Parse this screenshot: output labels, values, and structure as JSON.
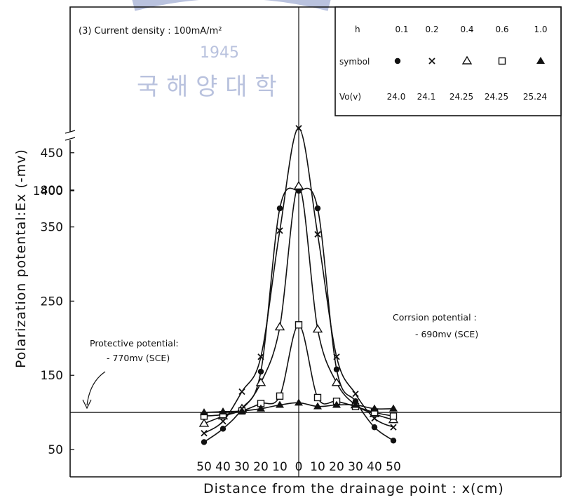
{
  "chart_data": {
    "type": "line",
    "title": "(3) Current density : 100mA/m²",
    "xlabel": "Distance from the drainage point : x(cm)",
    "ylabel": "Polarization potental:Ex (-mv)",
    "x": [
      -50,
      -40,
      -30,
      -20,
      -10,
      0,
      10,
      20,
      30,
      40,
      50
    ],
    "x_tick_labels": [
      "50",
      "40",
      "30",
      "20",
      "10",
      "0",
      "10",
      "20",
      "30",
      "40",
      "50"
    ],
    "y_tick_labels": [
      "50",
      "150",
      "250",
      "350",
      "450",
      "800",
      "1400"
    ],
    "xlim": [
      -60,
      70
    ],
    "ylim": [
      50,
      1550
    ],
    "y_scale": "broken axis (50–450 linear, break, 800, 1400)",
    "grid": false,
    "legend_placement": "top-right",
    "legend": {
      "header_h": "h",
      "header_symbol": "symbol",
      "header_vo": "Vo(v)",
      "h_values": [
        "0.1",
        "0.2",
        "0.4",
        "0.6",
        "1.0"
      ],
      "vo_values": [
        "24.0",
        "24.1",
        "24.25",
        "24.25",
        "25.24"
      ]
    },
    "series": [
      {
        "name": "0.1",
        "marker": "filled-circle",
        "values": [
          60,
          78,
          105,
          155,
          375,
          1400,
          375,
          158,
          115,
          80,
          62
        ]
      },
      {
        "name": "0.2",
        "marker": "cross",
        "values": [
          72,
          88,
          128,
          175,
          345,
          900,
          340,
          175,
          125,
          92,
          80
        ]
      },
      {
        "name": "0.4",
        "marker": "open-triangle",
        "values": [
          85,
          95,
          105,
          140,
          215,
          405,
          212,
          140,
          110,
          98,
          90
        ]
      },
      {
        "name": "0.6",
        "marker": "open-square",
        "values": [
          95,
          97,
          102,
          112,
          122,
          218,
          120,
          115,
          108,
          100,
          95
        ]
      },
      {
        "name": "1.0",
        "marker": "filled-triangle",
        "values": [
          100,
          101,
          102,
          105,
          110,
          113,
          108,
          110,
          110,
          105,
          105
        ]
      }
    ],
    "reference_line": {
      "value": 100
    },
    "annotations": {
      "protective": [
        "Protective potential:",
        "- 770mv (SCE)"
      ],
      "corrosion": [
        "Corrsion potential :",
        "- 690mv (SCE)"
      ]
    }
  },
  "watermark": {
    "text_top": "1945",
    "text_bottom": "국 해 양 대 학",
    "color": "#b9c2de"
  }
}
